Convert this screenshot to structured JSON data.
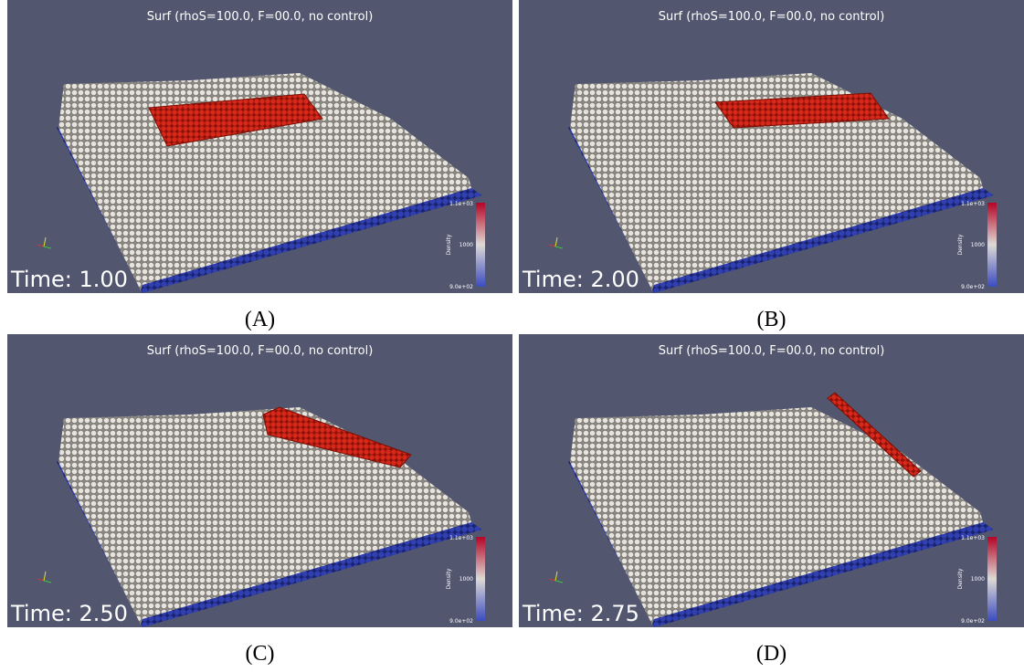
{
  "panels": [
    {
      "title": "Surf (rhoS=100.0, F=00.0, no control)",
      "time": "Time: 1.00",
      "colorbar": {
        "label": "Density",
        "max": "1.1e+03",
        "mid": "1000",
        "min": "9.0e+02"
      },
      "caption": "(A)"
    },
    {
      "title": "Surf (rhoS=100.0, F=00.0, no control)",
      "time": "Time: 2.00",
      "colorbar": {
        "label": "Density",
        "max": "1.1e+03",
        "mid": "1000",
        "min": "9.0e+02"
      },
      "caption": "(B)"
    },
    {
      "title": "Surf (rhoS=100.0, F=00.0, no control)",
      "time": "Time: 2.50",
      "colorbar": {
        "label": "Density",
        "max": "1.1e+03",
        "mid": "1000",
        "min": "9.0e+02"
      },
      "caption": "(C)"
    },
    {
      "title": "Surf (rhoS=100.0, F=00.0, no control)",
      "time": "Time: 2.75",
      "colorbar": {
        "label": "Density",
        "max": "1.1e+03",
        "mid": "1000",
        "min": "9.0e+02"
      },
      "caption": "(D)"
    }
  ]
}
